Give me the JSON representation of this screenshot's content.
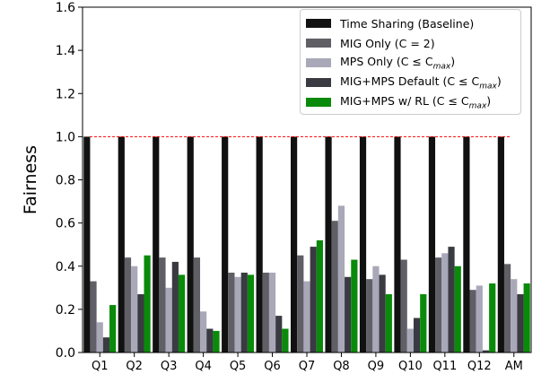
{
  "chart_data": {
    "type": "bar",
    "ylabel": "Fairness",
    "xlabel": "",
    "title": "",
    "ylim": [
      0,
      1.6
    ],
    "yticks": [
      "0.0",
      "0.2",
      "0.4",
      "0.6",
      "0.8",
      "1.0",
      "1.2",
      "1.4",
      "1.6"
    ],
    "categories": [
      "Q1",
      "Q2",
      "Q3",
      "Q4",
      "Q5",
      "Q6",
      "Q7",
      "Q8",
      "Q9",
      "Q10",
      "Q11",
      "Q12",
      "AM"
    ],
    "reference_line": {
      "y": 1.0,
      "color": "#ff0000",
      "style": "dashed"
    },
    "legend_position": "top-right",
    "series": [
      {
        "name": "Time Sharing (Baseline)",
        "color": "#111111",
        "values": [
          1.0,
          1.0,
          1.0,
          1.0,
          1.0,
          1.0,
          1.0,
          1.0,
          1.0,
          1.0,
          1.0,
          1.0,
          1.0
        ]
      },
      {
        "name": "MIG Only (C = 2)",
        "color": "#5f5f65",
        "values": [
          0.33,
          0.44,
          0.44,
          0.44,
          0.37,
          0.37,
          0.45,
          0.61,
          0.34,
          0.43,
          0.44,
          0.29,
          0.41
        ]
      },
      {
        "name": "MPS Only (C ≤ C_max)",
        "color": "#a9a8b8",
        "values": [
          0.14,
          0.4,
          0.3,
          0.19,
          0.35,
          0.37,
          0.33,
          0.68,
          0.4,
          0.11,
          0.46,
          0.31,
          0.34
        ]
      },
      {
        "name": "MIG+MPS Default (C ≤ C_max)",
        "color": "#3a3a42",
        "values": [
          0.07,
          0.27,
          0.42,
          0.11,
          0.37,
          0.17,
          0.49,
          0.35,
          0.36,
          0.16,
          0.49,
          0.01,
          0.27
        ]
      },
      {
        "name": "MIG+MPS w/ RL (C ≤ C_max)",
        "color": "#0a8a0a",
        "values": [
          0.22,
          0.45,
          0.36,
          0.1,
          0.36,
          0.11,
          0.52,
          0.43,
          0.27,
          0.27,
          0.4,
          0.32,
          0.32
        ]
      }
    ]
  },
  "legend": {
    "items": [
      {
        "prefix": "Time Sharing (Baseline)",
        "sub": "",
        "suffix": ""
      },
      {
        "prefix": "MIG Only (C = 2)",
        "sub": "",
        "suffix": ""
      },
      {
        "prefix": "MPS Only (C ≤ C",
        "sub": "max",
        "suffix": ")"
      },
      {
        "prefix": "MIG+MPS Default (C ≤ C",
        "sub": "max",
        "suffix": ")"
      },
      {
        "prefix": "MIG+MPS w/ RL (C ≤ C",
        "sub": "max",
        "suffix": ")"
      }
    ]
  }
}
